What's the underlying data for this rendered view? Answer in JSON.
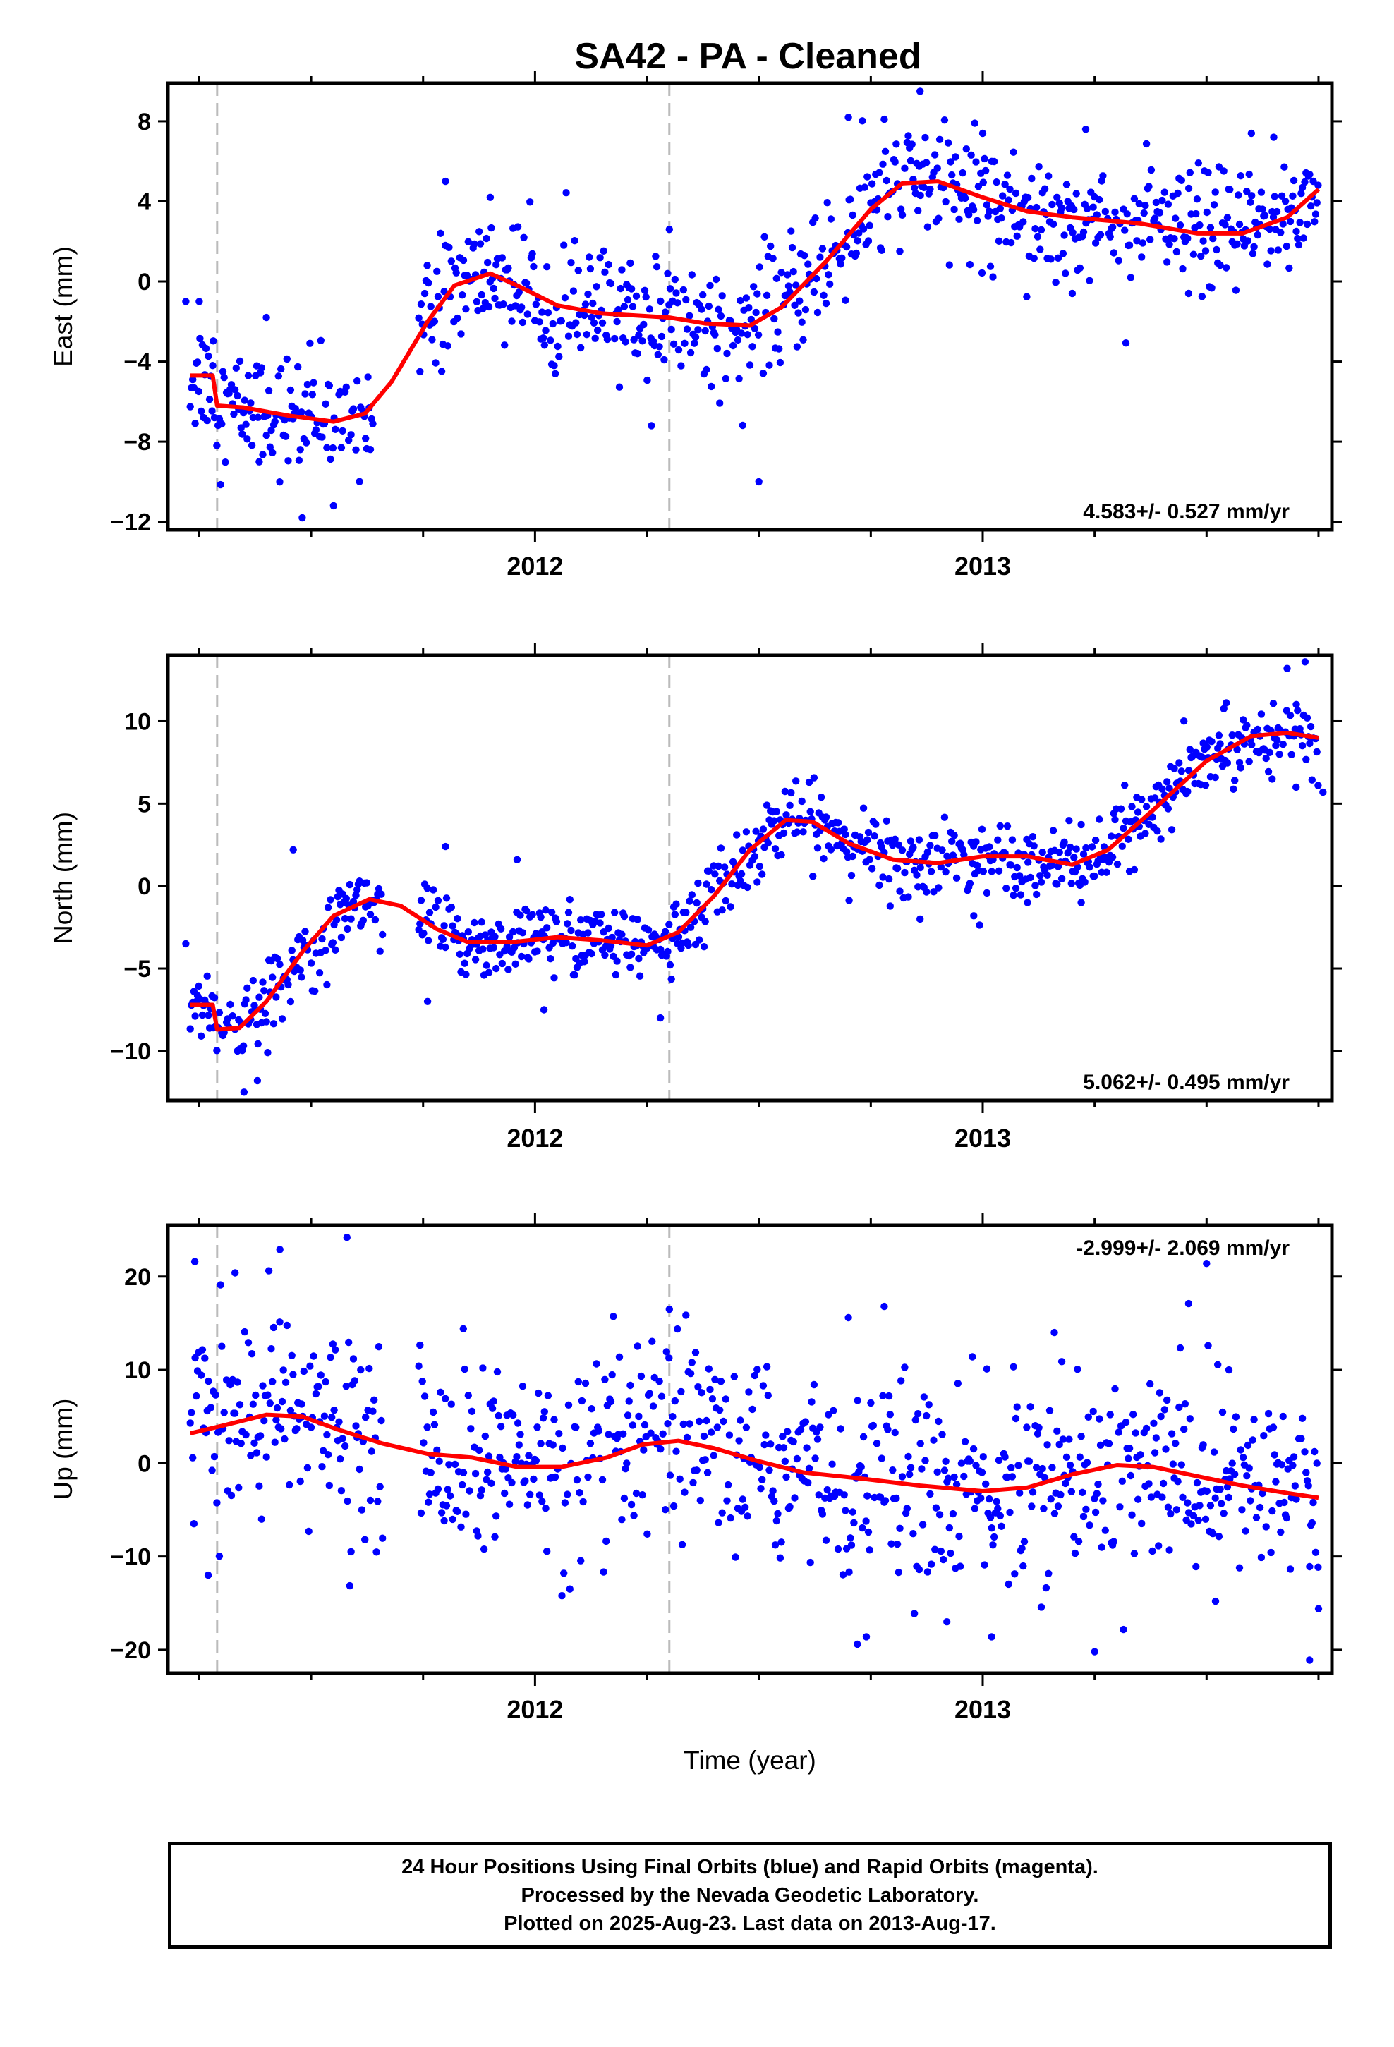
{
  "title": "SA42  - PA - Cleaned",
  "xlabel": "Time (year)",
  "colors": {
    "points": "#0000ff",
    "fit": "#ff0000",
    "events": "#bbbbbb",
    "frame": "#000000"
  },
  "footer": {
    "line1": "24 Hour Positions Using Final Orbits (blue) and Rapid Orbits (magenta).",
    "line2": "Processed by the Nevada Geodetic Laboratory.",
    "line3": "Plotted on 2025-Aug-23. Last data on 2013-Aug-17."
  },
  "chart_data": [
    {
      "type": "scatter",
      "ylabel": "East (mm)",
      "ylim": [
        -12.4,
        9.9
      ],
      "xlim": [
        2011.18,
        2013.78
      ],
      "yticks": [
        8,
        4,
        0,
        -4,
        -8,
        -12
      ],
      "xticks": [
        2012,
        2013
      ],
      "rate_label": "4.583+/- 0.527 mm/yr",
      "events": [
        2011.29,
        2012.3
      ],
      "fit": [
        [
          2011.23,
          -4.7
        ],
        [
          2011.28,
          -4.7
        ],
        [
          2011.29,
          -6.2
        ],
        [
          2011.35,
          -6.3
        ],
        [
          2011.45,
          -6.7
        ],
        [
          2011.55,
          -7.0
        ],
        [
          2011.62,
          -6.6
        ],
        [
          2011.68,
          -5.0
        ],
        [
          2011.76,
          -2.0
        ],
        [
          2011.82,
          -0.2
        ],
        [
          2011.9,
          0.4
        ],
        [
          2011.96,
          -0.2
        ],
        [
          2012.05,
          -1.2
        ],
        [
          2012.15,
          -1.6
        ],
        [
          2012.3,
          -1.8
        ],
        [
          2012.38,
          -2.1
        ],
        [
          2012.48,
          -2.2
        ],
        [
          2012.55,
          -1.3
        ],
        [
          2012.65,
          1.0
        ],
        [
          2012.75,
          3.6
        ],
        [
          2012.82,
          4.9
        ],
        [
          2012.9,
          5.0
        ],
        [
          2013.0,
          4.2
        ],
        [
          2013.1,
          3.5
        ],
        [
          2013.2,
          3.2
        ],
        [
          2013.35,
          2.9
        ],
        [
          2013.48,
          2.4
        ],
        [
          2013.58,
          2.4
        ],
        [
          2013.68,
          3.2
        ],
        [
          2013.75,
          4.6
        ]
      ],
      "outliers": [
        [
          2011.22,
          -1.0
        ],
        [
          2011.25,
          -1.0
        ],
        [
          2011.28,
          -4.2
        ],
        [
          2011.4,
          -1.8
        ],
        [
          2011.48,
          -11.8
        ],
        [
          2011.55,
          -11.2
        ],
        [
          2011.8,
          5.0
        ],
        [
          2011.9,
          4.2
        ],
        [
          2012.26,
          -7.2
        ],
        [
          2012.3,
          2.6
        ],
        [
          2012.5,
          -10.0
        ],
        [
          2012.7,
          8.2
        ],
        [
          2012.78,
          8.1
        ],
        [
          2012.86,
          9.5
        ],
        [
          2013.0,
          7.4
        ],
        [
          2013.23,
          7.6
        ],
        [
          2013.2,
          -0.6
        ],
        [
          2013.46,
          -0.6
        ],
        [
          2013.6,
          7.4
        ],
        [
          2013.65,
          7.2
        ]
      ],
      "noise_sd": 1.5,
      "gaps": [
        [
          2011.64,
          2011.74
        ]
      ]
    },
    {
      "type": "scatter",
      "ylabel": "North (mm)",
      "ylim": [
        -13.0,
        14.0
      ],
      "xlim": [
        2011.18,
        2013.78
      ],
      "yticks": [
        10,
        5,
        0,
        -5,
        -10
      ],
      "xticks": [
        2012,
        2013
      ],
      "rate_label": "5.062+/- 0.495 mm/yr",
      "events": [
        2011.29,
        2012.3
      ],
      "fit": [
        [
          2011.23,
          -7.2
        ],
        [
          2011.28,
          -7.2
        ],
        [
          2011.29,
          -8.7
        ],
        [
          2011.34,
          -8.6
        ],
        [
          2011.4,
          -7.0
        ],
        [
          2011.48,
          -4.0
        ],
        [
          2011.55,
          -1.8
        ],
        [
          2011.63,
          -0.8
        ],
        [
          2011.7,
          -1.2
        ],
        [
          2011.78,
          -2.6
        ],
        [
          2011.85,
          -3.4
        ],
        [
          2011.95,
          -3.4
        ],
        [
          2012.05,
          -3.1
        ],
        [
          2012.15,
          -3.3
        ],
        [
          2012.25,
          -3.6
        ],
        [
          2012.32,
          -2.8
        ],
        [
          2012.4,
          -0.6
        ],
        [
          2012.48,
          2.2
        ],
        [
          2012.56,
          4.0
        ],
        [
          2012.62,
          3.9
        ],
        [
          2012.7,
          2.6
        ],
        [
          2012.8,
          1.6
        ],
        [
          2012.9,
          1.4
        ],
        [
          2013.0,
          1.8
        ],
        [
          2013.1,
          1.8
        ],
        [
          2013.2,
          1.3
        ],
        [
          2013.28,
          2.2
        ],
        [
          2013.38,
          4.6
        ],
        [
          2013.5,
          7.6
        ],
        [
          2013.6,
          9.1
        ],
        [
          2013.68,
          9.3
        ],
        [
          2013.75,
          9.0
        ]
      ],
      "outliers": [
        [
          2011.22,
          -3.5
        ],
        [
          2011.35,
          -12.5
        ],
        [
          2011.38,
          -11.8
        ],
        [
          2011.46,
          2.2
        ],
        [
          2011.76,
          -7.0
        ],
        [
          2011.8,
          2.4
        ],
        [
          2011.96,
          1.6
        ],
        [
          2012.02,
          -7.5
        ],
        [
          2012.28,
          -8.0
        ],
        [
          2012.86,
          -2.0
        ],
        [
          2012.98,
          -1.8
        ],
        [
          2013.1,
          -1.0
        ],
        [
          2013.22,
          -1.0
        ],
        [
          2013.68,
          13.2
        ],
        [
          2013.72,
          13.6
        ],
        [
          2013.76,
          5.7
        ],
        [
          2013.7,
          6.0
        ]
      ],
      "noise_sd": 1.1,
      "gaps": [
        [
          2011.66,
          2011.74
        ]
      ]
    },
    {
      "type": "scatter",
      "ylabel": "Up (mm)",
      "ylim": [
        -22.5,
        25.5
      ],
      "xlim": [
        2011.18,
        2013.78
      ],
      "yticks": [
        20,
        10,
        0,
        -10,
        -20
      ],
      "xticks": [
        2012,
        2013
      ],
      "rate_label": "-2.999+/- 2.069 mm/yr",
      "events": [
        2011.29,
        2012.3
      ],
      "fit": [
        [
          2011.23,
          3.2
        ],
        [
          2011.3,
          4.0
        ],
        [
          2011.4,
          5.2
        ],
        [
          2011.48,
          5.0
        ],
        [
          2011.56,
          3.6
        ],
        [
          2011.66,
          2.1
        ],
        [
          2011.76,
          1.0
        ],
        [
          2011.86,
          0.6
        ],
        [
          2011.96,
          -0.4
        ],
        [
          2012.06,
          -0.4
        ],
        [
          2012.16,
          0.6
        ],
        [
          2012.24,
          2.0
        ],
        [
          2012.32,
          2.4
        ],
        [
          2012.4,
          1.6
        ],
        [
          2012.5,
          0.2
        ],
        [
          2012.6,
          -1.0
        ],
        [
          2012.72,
          -1.6
        ],
        [
          2012.86,
          -2.4
        ],
        [
          2013.0,
          -3.0
        ],
        [
          2013.1,
          -2.6
        ],
        [
          2013.2,
          -1.2
        ],
        [
          2013.3,
          -0.2
        ],
        [
          2013.38,
          -0.4
        ],
        [
          2013.48,
          -1.4
        ],
        [
          2013.58,
          -2.4
        ],
        [
          2013.68,
          -3.2
        ],
        [
          2013.75,
          -3.7
        ]
      ],
      "outliers": [
        [
          2011.24,
          21.6
        ],
        [
          2011.27,
          -12.0
        ],
        [
          2011.33,
          20.4
        ],
        [
          2011.43,
          22.9
        ],
        [
          2011.58,
          24.2
        ],
        [
          2011.62,
          -8.2
        ],
        [
          2011.84,
          14.4
        ],
        [
          2012.06,
          -14.2
        ],
        [
          2012.3,
          16.5
        ],
        [
          2012.7,
          15.6
        ],
        [
          2012.78,
          16.8
        ],
        [
          2012.72,
          -19.4
        ],
        [
          2012.74,
          -18.6
        ],
        [
          2012.92,
          -17.0
        ],
        [
          2013.02,
          -18.6
        ],
        [
          2013.16,
          14.0
        ],
        [
          2013.25,
          -20.2
        ],
        [
          2013.5,
          21.4
        ],
        [
          2013.52,
          -14.8
        ],
        [
          2013.73,
          -21.1
        ],
        [
          2013.75,
          -15.6
        ],
        [
          2013.46,
          17.1
        ],
        [
          2013.55,
          10.0
        ]
      ],
      "noise_sd": 5.2,
      "gaps": [
        [
          2011.66,
          2011.74
        ]
      ]
    }
  ]
}
